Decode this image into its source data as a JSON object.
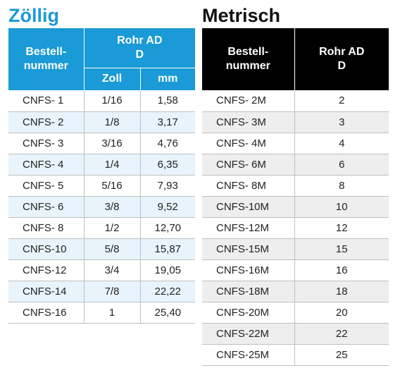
{
  "zoellig": {
    "title": "Zöllig",
    "header": {
      "order_number": [
        "Bestell-",
        "nummer"
      ],
      "tube_od": [
        "Rohr AD",
        "D"
      ],
      "inch": "Zoll",
      "mm": "mm"
    },
    "rows": [
      {
        "code": "CNFS- 1",
        "inch": "1/16",
        "mm": "1,58"
      },
      {
        "code": "CNFS- 2",
        "inch": "1/8",
        "mm": "3,17"
      },
      {
        "code": "CNFS- 3",
        "inch": "3/16",
        "mm": "4,76"
      },
      {
        "code": "CNFS- 4",
        "inch": "1/4",
        "mm": "6,35"
      },
      {
        "code": "CNFS- 5",
        "inch": "5/16",
        "mm": "7,93"
      },
      {
        "code": "CNFS- 6",
        "inch": "3/8",
        "mm": "9,52"
      },
      {
        "code": "CNFS- 8",
        "inch": "1/2",
        "mm": "12,70"
      },
      {
        "code": "CNFS-10",
        "inch": "5/8",
        "mm": "15,87"
      },
      {
        "code": "CNFS-12",
        "inch": "3/4",
        "mm": "19,05"
      },
      {
        "code": "CNFS-14",
        "inch": "7/8",
        "mm": "22,22"
      },
      {
        "code": "CNFS-16",
        "inch": "1",
        "mm": "25,40"
      }
    ]
  },
  "metrisch": {
    "title": "Metrisch",
    "header": {
      "order_number": [
        "Bestell-",
        "nummer"
      ],
      "tube_od": [
        "Rohr AD",
        "D"
      ]
    },
    "rows": [
      {
        "code": "CNFS- 2M",
        "od": "2"
      },
      {
        "code": "CNFS- 3M",
        "od": "3"
      },
      {
        "code": "CNFS- 4M",
        "od": "4"
      },
      {
        "code": "CNFS- 6M",
        "od": "6"
      },
      {
        "code": "CNFS- 8M",
        "od": "8"
      },
      {
        "code": "CNFS-10M",
        "od": "10"
      },
      {
        "code": "CNFS-12M",
        "od": "12"
      },
      {
        "code": "CNFS-15M",
        "od": "15"
      },
      {
        "code": "CNFS-16M",
        "od": "16"
      },
      {
        "code": "CNFS-18M",
        "od": "18"
      },
      {
        "code": "CNFS-20M",
        "od": "20"
      },
      {
        "code": "CNFS-22M",
        "od": "22"
      },
      {
        "code": "CNFS-25M",
        "od": "25"
      }
    ]
  },
  "colors": {
    "zoellig_accent": "#1a9ad6",
    "metrisch_accent": "#000000",
    "zoellig_stripe": "#e8f3fb",
    "metrisch_stripe": "#eeeeee"
  }
}
